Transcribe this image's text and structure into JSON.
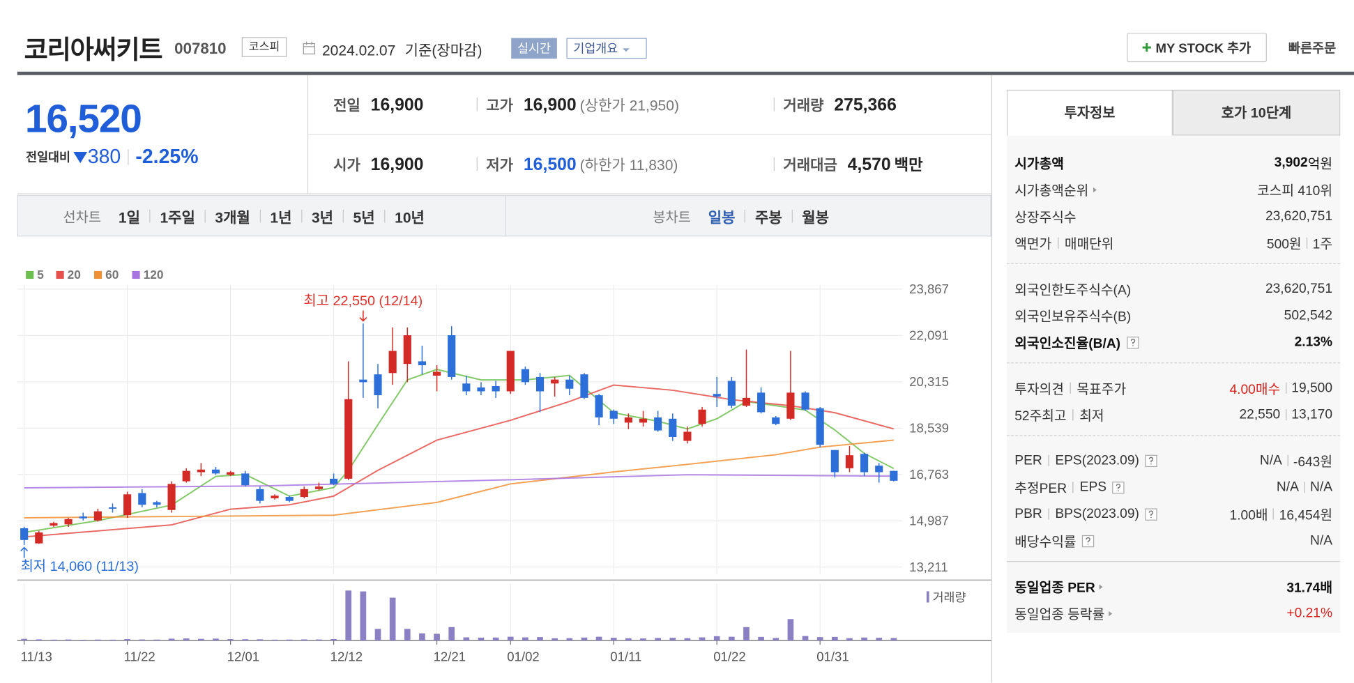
{
  "header": {
    "name": "코리아써키트",
    "code": "007810",
    "market": "코스피",
    "date": "2024.02.07",
    "date_note": "기준(장마감)",
    "realtime": "실시간",
    "company": "기업개요",
    "my_stock": "MY STOCK 추가",
    "quick_order": "빠른주문"
  },
  "quote": {
    "price": "16,520",
    "change_label": "전일대비",
    "change": "380",
    "change_rate": "-2.25%"
  },
  "stats": [
    {
      "label": "전일",
      "value": "16,900"
    },
    {
      "label": "고가",
      "value": "16,900",
      "note": "(상한가 21,950)"
    },
    {
      "label": "거래량",
      "value": "275,366"
    },
    {
      "label": "시가",
      "value": "16,900"
    },
    {
      "label": "저가",
      "value": "16,500",
      "note": "(하한가 11,830)",
      "value_color": "#1f5ed8"
    },
    {
      "label": "거래대금",
      "value": "4,570",
      "unit": "백만"
    }
  ],
  "periods": {
    "line_label": "선차트",
    "line_items": [
      "1일",
      "1주일",
      "3개월",
      "1년",
      "3년",
      "5년",
      "10년"
    ],
    "candle_label": "봉차트",
    "candle_items": [
      "일봉",
      "주봉",
      "월봉"
    ],
    "candle_selected": 0
  },
  "chart_data": {
    "type": "candlestick",
    "categories": [
      "11/13",
      null,
      null,
      null,
      null,
      null,
      null,
      "11/22",
      null,
      null,
      null,
      null,
      null,
      null,
      "12/01",
      null,
      null,
      null,
      null,
      null,
      null,
      "12/12",
      null,
      null,
      null,
      null,
      null,
      null,
      "12/21",
      null,
      null,
      null,
      null,
      "01/02",
      null,
      null,
      null,
      null,
      null,
      null,
      "01/11",
      null,
      null,
      null,
      null,
      null,
      null,
      "01/22",
      null,
      null,
      null,
      null,
      null,
      null,
      "01/31",
      null,
      null,
      null,
      null,
      null
    ],
    "open": [
      14700,
      14120,
      14800,
      14850,
      15150,
      15000,
      15500,
      15200,
      16050,
      15700,
      15400,
      16500,
      16850,
      16950,
      16750,
      16800,
      16200,
      15850,
      15900,
      15900,
      16200,
      16600,
      16600,
      20400,
      20600,
      20650,
      21000,
      21100,
      20550,
      22100,
      20250,
      20100,
      20150,
      19950,
      20800,
      20500,
      20250,
      20400,
      20600,
      19800,
      19200,
      18750,
      18750,
      18950,
      18900,
      18050,
      18700,
      19850,
      20350,
      19400,
      19900,
      18950,
      18900,
      19900,
      19300,
      17700,
      17000,
      17550,
      17100,
      16900
    ],
    "high": [
      14760,
      14600,
      14950,
      15100,
      15300,
      15450,
      15650,
      16100,
      16200,
      15750,
      16500,
      17000,
      17200,
      17050,
      16900,
      16900,
      16300,
      16000,
      15950,
      16300,
      16450,
      16800,
      21100,
      22550,
      21000,
      22400,
      22400,
      21700,
      20950,
      22450,
      20550,
      20300,
      20350,
      21500,
      20900,
      20650,
      20500,
      20550,
      20650,
      19850,
      19250,
      19100,
      19200,
      19200,
      19100,
      18600,
      19350,
      20500,
      20500,
      21550,
      20100,
      19000,
      21500,
      19950,
      19350,
      17700,
      17850,
      17600,
      17200,
      16900
    ],
    "low": [
      14060,
      14100,
      14750,
      14750,
      15000,
      14950,
      15300,
      15100,
      15500,
      15500,
      15300,
      16450,
      16700,
      16750,
      16700,
      16300,
      15650,
      15800,
      15700,
      15850,
      16150,
      16350,
      16550,
      19700,
      19300,
      20200,
      20300,
      20600,
      19950,
      20400,
      19800,
      19800,
      19700,
      19850,
      20200,
      19150,
      19750,
      19800,
      19650,
      18650,
      18700,
      18500,
      18600,
      18400,
      18050,
      17950,
      18600,
      19350,
      19300,
      19350,
      19100,
      18650,
      18850,
      19200,
      17800,
      16650,
      16850,
      16700,
      16450,
      16500
    ],
    "close": [
      14250,
      14540,
      14900,
      15050,
      15080,
      15350,
      15450,
      16000,
      15600,
      15600,
      16400,
      16900,
      16950,
      16800,
      16850,
      16350,
      15750,
      15950,
      15750,
      16200,
      16300,
      16400,
      19650,
      20300,
      19800,
      21500,
      22100,
      20950,
      20700,
      20500,
      19950,
      19950,
      19950,
      21500,
      20300,
      19950,
      20400,
      20050,
      19700,
      18950,
      18900,
      18950,
      18900,
      18450,
      18200,
      18400,
      19250,
      19750,
      19400,
      19700,
      19150,
      18700,
      19900,
      19250,
      17900,
      16850,
      17500,
      16850,
      16850,
      16520
    ],
    "up_color": "#d42a26",
    "down_color": "#2c6fd9",
    "ylim": [
      12946,
      24032
    ],
    "yticks": [
      {
        "value": 13211,
        "label": "13,211"
      },
      {
        "value": 14987,
        "label": "14,987"
      },
      {
        "value": 16763,
        "label": "16,763"
      },
      {
        "value": 18539,
        "label": "18,539"
      },
      {
        "value": 20315,
        "label": "20,315"
      },
      {
        "value": 22091,
        "label": "22,091"
      },
      {
        "value": 23867,
        "label": "23,867"
      }
    ],
    "grid": true,
    "legend": "top-left",
    "series": [
      {
        "name": "5",
        "color": "#6cbf4e",
        "x": [
          0,
          5,
          10,
          13,
          15,
          18,
          21,
          22,
          24,
          26,
          28,
          31,
          34,
          37,
          40,
          43,
          45,
          47,
          49,
          51,
          53,
          55,
          57,
          59
        ],
        "values": [
          14540,
          14990,
          15590,
          16690,
          16760,
          15930,
          16260,
          16920,
          18670,
          20390,
          20790,
          20390,
          20390,
          20560,
          19130,
          18800,
          18510,
          18900,
          19560,
          19400,
          19230,
          18470,
          17570,
          16990
        ]
      },
      {
        "name": "20",
        "color": "#e5504a",
        "x": [
          0,
          10,
          14,
          18,
          21,
          24,
          28,
          33,
          37,
          40,
          44,
          48,
          52,
          55,
          59
        ],
        "values": [
          14370,
          14830,
          15430,
          15600,
          15930,
          16920,
          18080,
          18840,
          19560,
          20190,
          19990,
          19630,
          19400,
          19130,
          18510
        ]
      },
      {
        "name": "60",
        "color": "#f09035",
        "x": [
          0,
          10,
          21,
          28,
          33,
          40,
          45,
          51,
          54,
          59
        ],
        "values": [
          15100,
          15150,
          15200,
          15690,
          16400,
          16860,
          17150,
          17520,
          17810,
          18080
        ]
      },
      {
        "name": "120",
        "color": "#a874e0",
        "x": [
          0,
          16,
          33,
          45,
          59
        ],
        "values": [
          16250,
          16320,
          16560,
          16750,
          16700
        ]
      }
    ],
    "annotations": [
      {
        "text": "최고 22,550 (12/14)",
        "color": "#e0302a"
      },
      {
        "text": "최저 14,060 (11/13)",
        "color": "#2c6fd9"
      }
    ],
    "volume": {
      "label": "거래량",
      "color": "#8c80c4",
      "ylim": [
        0,
        6000000
      ],
      "values": [
        180000,
        120000,
        90000,
        110000,
        80000,
        100000,
        90000,
        150000,
        110000,
        100000,
        200000,
        230000,
        180000,
        210000,
        150000,
        140000,
        130000,
        90000,
        100000,
        120000,
        110000,
        160000,
        5600000,
        5500000,
        1300000,
        4800000,
        1300000,
        800000,
        750000,
        1500000,
        350000,
        320000,
        330000,
        420000,
        350000,
        380000,
        250000,
        260000,
        330000,
        420000,
        300000,
        250000,
        230000,
        280000,
        300000,
        260000,
        350000,
        480000,
        420000,
        1500000,
        400000,
        280000,
        2400000,
        500000,
        380000,
        400000,
        260000,
        330000,
        300000,
        275366
      ]
    }
  },
  "invest": {
    "tabs": [
      "투자정보",
      "호가 10단계"
    ],
    "selected": 0,
    "sections": [
      [
        {
          "labels": [
            "시가총액"
          ],
          "values": [
            "3,902"
          ],
          "unit": "억원",
          "bold": true
        },
        {
          "labels": [
            "시가총액순위"
          ],
          "values": [
            "코스피 410위"
          ],
          "icon": "arrow"
        },
        {
          "labels": [
            "상장주식수"
          ],
          "values": [
            "23,620,751"
          ]
        },
        {
          "labels": [
            "액면가",
            "매매단위"
          ],
          "values": [
            "500원",
            "1주"
          ]
        }
      ],
      [
        {
          "labels": [
            "외국인한도주식수(A)"
          ],
          "values": [
            "23,620,751"
          ]
        },
        {
          "labels": [
            "외국인보유주식수(B)"
          ],
          "values": [
            "502,542"
          ]
        },
        {
          "labels": [
            "외국인소진율(B/A)"
          ],
          "values": [
            "2.13%"
          ],
          "bold": true,
          "icon": "help"
        }
      ],
      [
        {
          "labels": [
            "투자의견",
            "목표주가"
          ],
          "values": [
            "4.00매수",
            "19,500"
          ],
          "first_value_color": "#d9221c"
        },
        {
          "labels": [
            "52주최고",
            "최저"
          ],
          "values": [
            "22,550",
            "13,170"
          ]
        }
      ],
      [
        {
          "labels": [
            "PER",
            "EPS(2023.09)"
          ],
          "values": [
            "N/A",
            "-643원"
          ],
          "icon": "help"
        },
        {
          "labels": [
            "추정PER",
            "EPS"
          ],
          "values": [
            "N/A",
            "N/A"
          ],
          "icon": "help"
        },
        {
          "labels": [
            "PBR",
            "BPS(2023.09)"
          ],
          "values": [
            "1.00배",
            "16,454원"
          ],
          "icon": "help"
        },
        {
          "labels": [
            "배당수익률"
          ],
          "values": [
            "N/A"
          ],
          "icon": "help"
        }
      ],
      [
        {
          "labels": [
            "동일업종 PER"
          ],
          "values": [
            "31.74배"
          ],
          "bold": true,
          "icon": "arrow"
        },
        {
          "labels": [
            "동일업종 등락률"
          ],
          "values": [
            "+0.21%"
          ],
          "icon": "arrow",
          "first_value_color": "#d9221c"
        }
      ]
    ]
  }
}
